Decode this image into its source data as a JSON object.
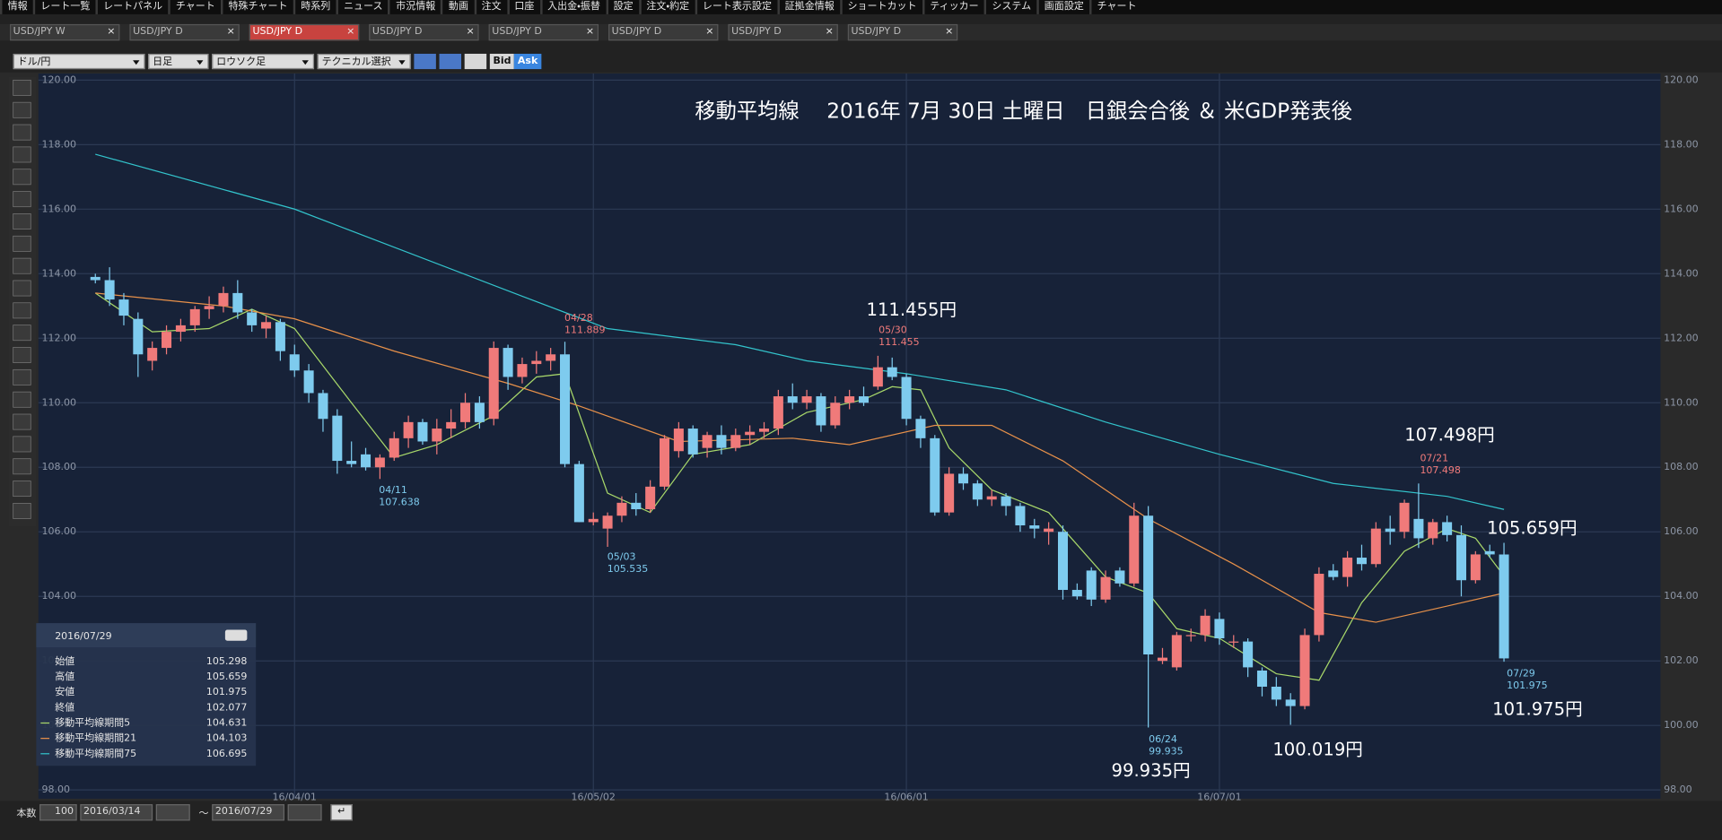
{
  "menu": [
    "情報",
    "レート一覧",
    "レートパネル",
    "チャート",
    "特殊チャート",
    "時系列",
    "ニュース",
    "市況情報",
    "動画",
    "注文",
    "口座",
    "入出金・振替",
    "設定",
    "注文・約定",
    "レート表示設定",
    "証拠金情報",
    "ショートカット",
    "ティッカー",
    "システム",
    "画面設定",
    "チャート"
  ],
  "tabs": [
    "USD/JPY W",
    "USD/JPY D",
    "USD/JPY D",
    "USD/JPY D",
    "USD/JPY D",
    "USD/JPY D",
    "USD/JPY D",
    "USD/JPY D"
  ],
  "active_tab": 2,
  "toolbar": {
    "pair": "ドル/円",
    "period": "日足",
    "style": "ロウソク足",
    "technical": "テクニカル選択",
    "bid": "Bid",
    "ask": "Ask"
  },
  "chart_data": {
    "type": "candlestick",
    "title": "移動平均線　 2016年 7月 30日 土曜日　日銀会合後 ＆ 米GDP発表後",
    "open": [
      113.9,
      113.8,
      113.2,
      112.6,
      111.3,
      111.7,
      112.2,
      112.4,
      112.9,
      113.0,
      113.4,
      112.8,
      112.3,
      112.5,
      111.5,
      111.0,
      110.3,
      109.6,
      108.2,
      108.4,
      108.0,
      108.3,
      108.9,
      109.4,
      108.8,
      109.2,
      109.4,
      110.0,
      109.5,
      111.7,
      110.8,
      111.2,
      111.3,
      111.5,
      108.1,
      106.3,
      106.1,
      106.5,
      106.9,
      106.7,
      107.4,
      108.5,
      109.2,
      108.6,
      109.0,
      108.6,
      109.0,
      109.1,
      109.2,
      110.2,
      110.0,
      110.2,
      109.3,
      110.0,
      110.2,
      110.5,
      111.1,
      110.8,
      109.5,
      108.9,
      106.6,
      107.8,
      107.5,
      107.0,
      107.1,
      106.8,
      106.2,
      106.0,
      106.0,
      104.2,
      104.8,
      103.9,
      104.8,
      104.4,
      106.5,
      102.0,
      101.8,
      102.8,
      102.8,
      103.3,
      102.6,
      102.6,
      101.7,
      101.2,
      100.8,
      100.6,
      102.8,
      104.8,
      104.6,
      105.2,
      105.0,
      106.1,
      106.0,
      106.4,
      105.8,
      106.3,
      105.9,
      104.5,
      105.4,
      105.298
    ],
    "high": [
      114.0,
      114.2,
      113.4,
      112.8,
      111.9,
      112.4,
      112.6,
      113.0,
      113.3,
      113.6,
      113.8,
      112.9,
      112.7,
      112.6,
      111.8,
      111.2,
      110.4,
      109.8,
      108.8,
      108.6,
      108.4,
      109.1,
      109.6,
      109.5,
      109.5,
      109.8,
      110.3,
      110.2,
      111.9,
      111.8,
      111.4,
      111.6,
      111.7,
      111.889,
      108.2,
      106.6,
      106.6,
      107.1,
      107.2,
      107.6,
      109.0,
      109.4,
      109.3,
      109.1,
      109.3,
      109.2,
      109.3,
      109.4,
      110.4,
      110.6,
      110.4,
      110.3,
      110.2,
      110.4,
      110.5,
      111.455,
      111.4,
      110.9,
      109.6,
      109.0,
      108.0,
      108.0,
      107.6,
      107.3,
      107.2,
      106.9,
      106.4,
      106.3,
      106.2,
      104.4,
      104.9,
      104.8,
      104.9,
      106.9,
      106.8,
      102.4,
      102.9,
      103.0,
      103.6,
      103.5,
      102.8,
      102.7,
      101.8,
      101.5,
      101.0,
      103.0,
      104.9,
      105.0,
      105.4,
      105.6,
      106.3,
      106.5,
      107.0,
      107.498,
      106.4,
      106.5,
      106.2,
      105.4,
      105.6,
      105.659
    ],
    "low": [
      113.7,
      113.0,
      112.4,
      110.8,
      111.0,
      111.5,
      111.9,
      112.2,
      112.6,
      112.8,
      112.6,
      112.2,
      112.0,
      111.3,
      110.8,
      110.0,
      109.1,
      107.8,
      108.0,
      107.9,
      107.638,
      108.2,
      108.6,
      108.7,
      108.4,
      108.9,
      109.2,
      109.2,
      109.3,
      110.4,
      110.6,
      110.9,
      111.0,
      108.0,
      106.3,
      106.2,
      105.535,
      106.3,
      106.5,
      106.6,
      107.3,
      108.3,
      108.3,
      108.3,
      108.4,
      108.5,
      108.7,
      108.9,
      109.0,
      109.8,
      109.8,
      109.1,
      109.2,
      109.8,
      109.9,
      110.4,
      110.7,
      109.3,
      108.6,
      106.5,
      106.5,
      107.3,
      106.8,
      106.8,
      106.5,
      106.0,
      105.8,
      105.6,
      103.9,
      103.9,
      103.7,
      103.8,
      104.3,
      104.3,
      99.935,
      101.9,
      101.7,
      102.6,
      102.6,
      102.5,
      102.4,
      101.5,
      100.9,
      100.6,
      100.019,
      100.5,
      102.6,
      104.5,
      104.3,
      104.8,
      104.9,
      105.6,
      105.8,
      105.5,
      105.6,
      105.7,
      104.0,
      104.4,
      105.2,
      101.975
    ],
    "close": [
      113.8,
      113.2,
      112.7,
      111.5,
      111.7,
      112.2,
      112.4,
      112.9,
      113.0,
      113.4,
      112.8,
      112.4,
      112.5,
      111.6,
      111.0,
      110.3,
      109.5,
      108.2,
      108.1,
      108.0,
      108.3,
      108.9,
      109.4,
      108.8,
      109.2,
      109.4,
      110.0,
      109.4,
      111.7,
      110.8,
      111.2,
      111.3,
      111.5,
      108.1,
      106.3,
      106.4,
      106.5,
      106.9,
      106.7,
      107.4,
      108.9,
      109.2,
      108.4,
      109.0,
      108.6,
      109.0,
      109.1,
      109.2,
      110.2,
      110.0,
      110.2,
      109.3,
      110.0,
      110.2,
      110.0,
      111.1,
      110.8,
      109.5,
      108.9,
      106.6,
      107.8,
      107.5,
      107.0,
      107.1,
      106.8,
      106.2,
      106.1,
      106.1,
      104.2,
      104.0,
      103.9,
      104.6,
      104.4,
      106.5,
      102.2,
      102.1,
      102.8,
      102.8,
      103.4,
      102.7,
      102.6,
      101.8,
      101.2,
      100.8,
      100.6,
      102.8,
      104.7,
      104.6,
      105.2,
      105.0,
      106.1,
      106.0,
      106.9,
      105.8,
      106.3,
      105.9,
      104.5,
      105.3,
      105.3,
      102.077
    ],
    "up_color": "#f07a7a",
    "down_color": "#7ecbee",
    "series": [
      {
        "name": "移動平均線期間5",
        "color": "#a8d86a",
        "x": [
          0,
          4,
          8,
          11,
          14,
          18,
          21,
          24,
          28,
          31,
          33,
          36,
          39,
          42,
          46,
          50,
          54,
          56,
          58,
          60,
          63,
          67,
          71,
          74,
          76,
          79,
          83,
          86,
          89,
          92,
          95,
          97,
          99
        ],
        "values": [
          113.4,
          112.2,
          112.3,
          112.9,
          112.3,
          110.0,
          108.3,
          108.7,
          109.6,
          110.8,
          110.9,
          107.2,
          106.6,
          108.4,
          108.7,
          109.7,
          110.1,
          110.5,
          110.4,
          108.6,
          107.3,
          106.6,
          104.6,
          104.1,
          103.0,
          102.7,
          101.6,
          101.4,
          103.8,
          105.4,
          106.1,
          105.8,
          104.631
        ]
      },
      {
        "name": "移動平均線期間21",
        "color": "#e8914a",
        "x": [
          0,
          9,
          14,
          21,
          29,
          34,
          41,
          49,
          53,
          59,
          63,
          68,
          74,
          80,
          86,
          90,
          95,
          99
        ],
        "values": [
          113.4,
          113.0,
          112.6,
          111.6,
          110.6,
          109.9,
          108.8,
          108.9,
          108.7,
          109.3,
          109.3,
          108.2,
          106.4,
          105.0,
          103.5,
          103.2,
          103.7,
          104.103
        ]
      },
      {
        "name": "移動平均線期間75",
        "color": "#33c4cc",
        "x": [
          0,
          14,
          30,
          36,
          45,
          50,
          57,
          64,
          71,
          79,
          87,
          95,
          99
        ],
        "values": [
          117.7,
          116.0,
          113.3,
          112.3,
          111.8,
          111.3,
          110.9,
          110.4,
          109.4,
          108.4,
          107.5,
          107.1,
          106.695
        ]
      }
    ],
    "xlim": [
      -4,
      110
    ],
    "xticks": [
      {
        "value": 14,
        "label": "16/04/01"
      },
      {
        "value": 35,
        "label": "16/05/02"
      },
      {
        "value": 57,
        "label": "16/06/01"
      },
      {
        "value": 79,
        "label": "16/07/01"
      }
    ],
    "ylim": [
      98,
      120
    ],
    "yticks": [
      {
        "value": 98,
        "label": "98.00"
      },
      {
        "value": 100,
        "label": "100.00"
      },
      {
        "value": 102,
        "label": "102.00"
      },
      {
        "value": 104,
        "label": "104.00"
      },
      {
        "value": 106,
        "label": "106.00"
      },
      {
        "value": 108,
        "label": "108.00"
      },
      {
        "value": 110,
        "label": "110.00"
      },
      {
        "value": 112,
        "label": "112.00"
      },
      {
        "value": 114,
        "label": "114.00"
      },
      {
        "value": 116,
        "label": "116.00"
      },
      {
        "value": 118,
        "label": "118.00"
      },
      {
        "value": 120,
        "label": "120.00"
      }
    ],
    "grid": true,
    "annotations": [
      "111.455円",
      "107.498円",
      "105.659円",
      "99.935円",
      "100.019円",
      "101.975円"
    ],
    "point_labels": [
      {
        "date": "04/11",
        "value": "107.638"
      },
      {
        "date": "04/28",
        "value": "111.889"
      },
      {
        "date": "05/03",
        "value": "105.535"
      },
      {
        "date": "05/30",
        "value": "111.455"
      },
      {
        "date": "06/24",
        "value": "99.935"
      },
      {
        "date": "07/21",
        "value": "107.498"
      },
      {
        "date": "07/29",
        "value": "101.975"
      }
    ]
  },
  "info_panel": {
    "date": "2016/07/29",
    "rows": [
      {
        "label": "始値",
        "value": "105.298"
      },
      {
        "label": "高値",
        "value": "105.659"
      },
      {
        "label": "安値",
        "value": "101.975"
      },
      {
        "label": "終値",
        "value": "102.077"
      }
    ],
    "ma_values": [
      "104.631",
      "104.103",
      "106.695"
    ]
  },
  "footer": {
    "count_label": "本数",
    "count": 100,
    "from": "2016/03/14",
    "separator": "～",
    "to": "2016/07/29"
  }
}
